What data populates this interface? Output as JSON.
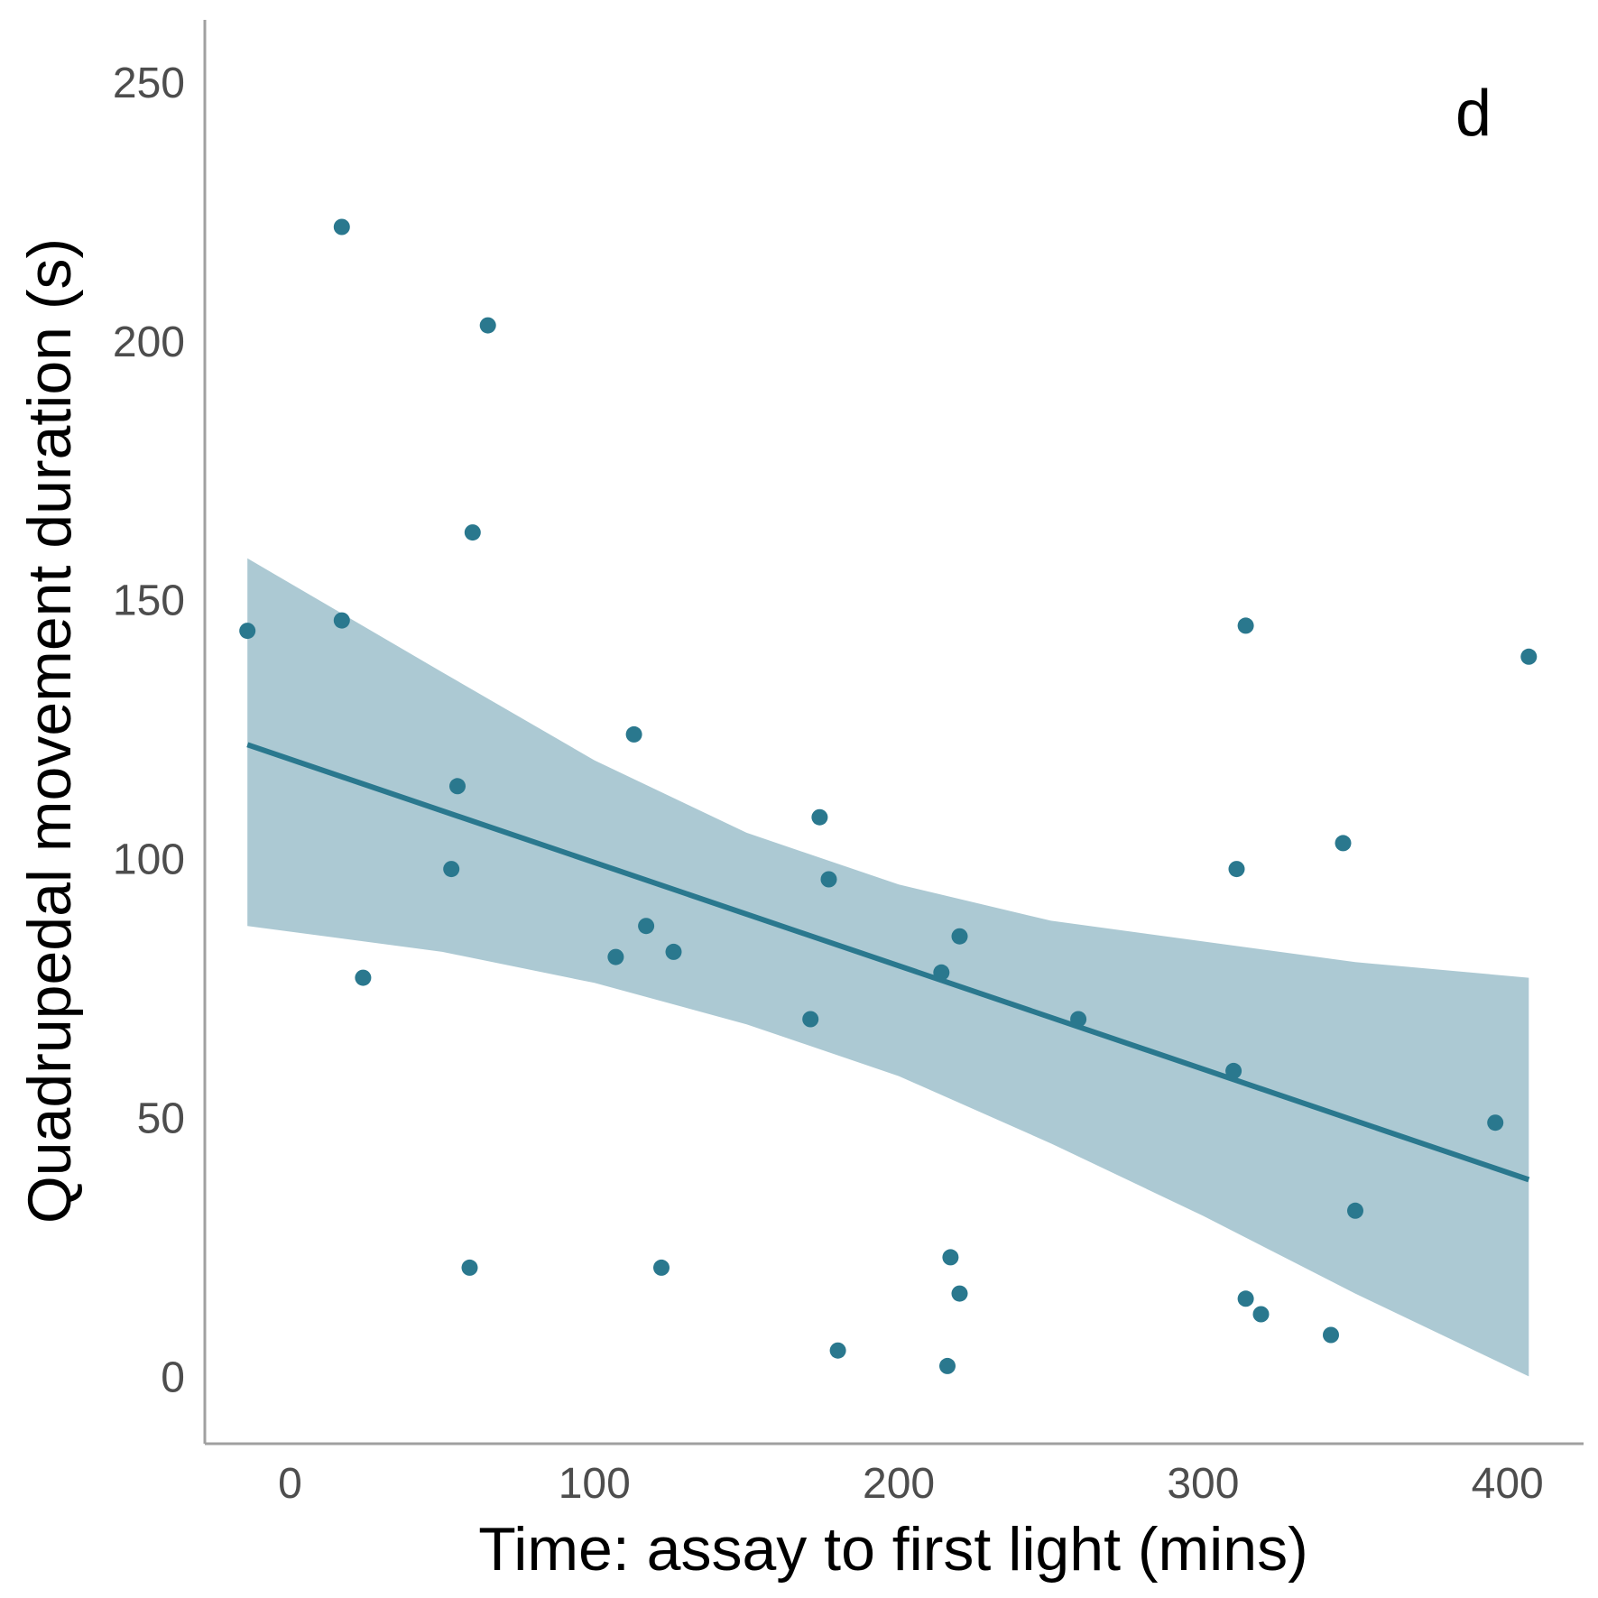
{
  "chart_data": {
    "type": "scatter",
    "panel_label": "d",
    "xlabel": "Time: assay to first light (mins)",
    "ylabel": "Quadrupedal movement duration (s)",
    "xlim": [
      -28,
      425
    ],
    "ylim": [
      -13,
      262
    ],
    "xticks": [
      0,
      100,
      200,
      300,
      400
    ],
    "yticks": [
      0,
      50,
      100,
      150,
      200,
      250
    ],
    "grid": false,
    "legend": "none",
    "points": [
      {
        "x": -14,
        "y": 144
      },
      {
        "x": 17,
        "y": 222
      },
      {
        "x": 17,
        "y": 146
      },
      {
        "x": 24,
        "y": 77
      },
      {
        "x": 53,
        "y": 98
      },
      {
        "x": 55,
        "y": 114
      },
      {
        "x": 60,
        "y": 163
      },
      {
        "x": 59,
        "y": 21
      },
      {
        "x": 65,
        "y": 203
      },
      {
        "x": 107,
        "y": 81
      },
      {
        "x": 113,
        "y": 124
      },
      {
        "x": 117,
        "y": 87
      },
      {
        "x": 122,
        "y": 21
      },
      {
        "x": 126,
        "y": 82
      },
      {
        "x": 171,
        "y": 69
      },
      {
        "x": 174,
        "y": 108
      },
      {
        "x": 177,
        "y": 96
      },
      {
        "x": 180,
        "y": 5
      },
      {
        "x": 214,
        "y": 78
      },
      {
        "x": 216,
        "y": 2
      },
      {
        "x": 217,
        "y": 23
      },
      {
        "x": 220,
        "y": 85
      },
      {
        "x": 220,
        "y": 16
      },
      {
        "x": 259,
        "y": 69
      },
      {
        "x": 310,
        "y": 59
      },
      {
        "x": 311,
        "y": 98
      },
      {
        "x": 314,
        "y": 145
      },
      {
        "x": 314,
        "y": 15
      },
      {
        "x": 319,
        "y": 12
      },
      {
        "x": 342,
        "y": 8
      },
      {
        "x": 346,
        "y": 103
      },
      {
        "x": 350,
        "y": 32
      },
      {
        "x": 396,
        "y": 49
      },
      {
        "x": 407,
        "y": 139
      }
    ],
    "fit_line": {
      "x": [
        -14,
        407
      ],
      "y": [
        122,
        38
      ]
    },
    "confidence_band": {
      "x": [
        -14,
        50,
        100,
        150,
        200,
        250,
        300,
        350,
        407
      ],
      "upper": [
        158,
        136,
        119,
        105,
        95,
        88,
        84,
        80,
        77
      ],
      "lower": [
        87,
        82,
        76,
        68,
        58,
        45,
        31,
        16,
        0
      ]
    },
    "colors": {
      "points": "#2a788e",
      "line": "#2a788e",
      "band": "#acc9d3",
      "axis": "#a0a0a0",
      "tick_text": "#4d4d4d"
    }
  }
}
